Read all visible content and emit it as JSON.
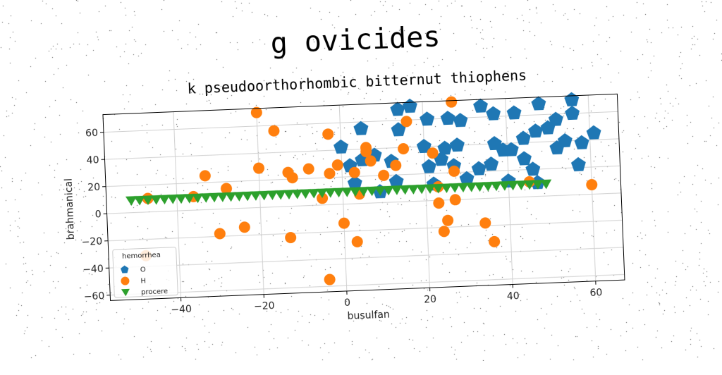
{
  "chart_data": {
    "type": "scatter",
    "title": "g ovicides",
    "subtitle": "k pseudoorthorhombic bitternut thiophens",
    "xlabel": "busulfan",
    "ylabel": "brahmanical",
    "xlim": [
      -57,
      67
    ],
    "ylim": [
      -64,
      73
    ],
    "xticks": [
      -40,
      -20,
      0,
      20,
      40,
      60
    ],
    "yticks": [
      -60,
      -40,
      -20,
      0,
      20,
      40,
      60
    ],
    "grid": true,
    "legend": {
      "title": "hemorrhea",
      "position": "lower-left"
    },
    "series": [
      {
        "name": "O",
        "marker": "pentagon",
        "color": "#1f77b4",
        "points": [
          [
            5,
            55
          ],
          [
            14,
            68
          ],
          [
            17,
            70
          ],
          [
            21,
            60
          ],
          [
            14,
            53
          ],
          [
            26,
            60
          ],
          [
            29,
            58
          ],
          [
            34,
            68
          ],
          [
            37,
            62
          ],
          [
            42,
            62
          ],
          [
            48,
            68
          ],
          [
            52,
            56
          ],
          [
            56,
            70
          ],
          [
            56,
            60
          ],
          [
            61,
            45
          ],
          [
            47,
            48
          ],
          [
            44,
            43
          ],
          [
            54,
            40
          ],
          [
            52,
            35
          ],
          [
            58,
            38
          ],
          [
            57,
            22
          ],
          [
            50,
            50
          ],
          [
            37,
            40
          ],
          [
            36,
            25
          ],
          [
            33,
            22
          ],
          [
            39,
            35
          ],
          [
            44,
            28
          ],
          [
            46,
            20
          ],
          [
            41,
            35
          ],
          [
            28,
            40
          ],
          [
            25,
            38
          ],
          [
            24,
            30
          ],
          [
            27,
            25
          ],
          [
            20,
            40
          ],
          [
            21,
            25
          ],
          [
            12,
            30
          ],
          [
            8,
            35
          ],
          [
            5,
            32
          ],
          [
            2,
            28
          ],
          [
            0,
            42
          ],
          [
            3,
            15
          ],
          [
            9,
            8
          ],
          [
            13,
            15
          ],
          [
            22,
            12
          ],
          [
            30,
            15
          ],
          [
            40,
            12
          ],
          [
            47,
            10
          ]
        ]
      },
      {
        "name": "H",
        "marker": "circle",
        "color": "#ff7f0e",
        "points": [
          [
            -20,
            70
          ],
          [
            -16,
            56
          ],
          [
            -20,
            29
          ],
          [
            -33,
            25
          ],
          [
            -28,
            15
          ],
          [
            -13,
            25
          ],
          [
            -12,
            21
          ],
          [
            -8,
            27
          ],
          [
            -3,
            52
          ],
          [
            -3,
            23
          ],
          [
            -1,
            29
          ],
          [
            3,
            23
          ],
          [
            6,
            41
          ],
          [
            6,
            38
          ],
          [
            7,
            31
          ],
          [
            10,
            20
          ],
          [
            13,
            27
          ],
          [
            15,
            39
          ],
          [
            16,
            59
          ],
          [
            22,
            35
          ],
          [
            23,
            10
          ],
          [
            23,
            -2
          ],
          [
            24,
            -23
          ],
          [
            25,
            -15
          ],
          [
            27,
            72
          ],
          [
            27,
            21
          ],
          [
            27,
            0
          ],
          [
            34,
            -18
          ],
          [
            36,
            -32
          ],
          [
            45,
            11
          ],
          [
            60,
            7
          ],
          [
            -5,
            5
          ],
          [
            -4,
            -55
          ],
          [
            0,
            -14
          ],
          [
            3,
            -28
          ],
          [
            4,
            7
          ],
          [
            -13,
            -23
          ],
          [
            -24,
            -14
          ],
          [
            -30,
            -18
          ],
          [
            -36,
            10
          ],
          [
            -48,
            -32
          ],
          [
            -47,
            10
          ]
        ]
      },
      {
        "name": "procere",
        "marker": "triangle-down",
        "color": "#2ca02c",
        "points": [
          [
            -51,
            9
          ],
          [
            -49,
            9
          ],
          [
            -47,
            9
          ],
          [
            -45,
            9
          ],
          [
            -43,
            9
          ],
          [
            -41,
            9
          ],
          [
            -39,
            9
          ],
          [
            -37,
            9
          ],
          [
            -35,
            9
          ],
          [
            -33,
            9
          ],
          [
            -31,
            9
          ],
          [
            -29,
            9
          ],
          [
            -27,
            9
          ],
          [
            -25,
            9
          ],
          [
            -23,
            9
          ],
          [
            -21,
            9
          ],
          [
            -19,
            9
          ],
          [
            -17,
            9
          ],
          [
            -15,
            9
          ],
          [
            -13,
            9
          ],
          [
            -11,
            9
          ],
          [
            -9,
            9
          ],
          [
            -7,
            9
          ],
          [
            -5,
            9
          ],
          [
            -3,
            9
          ],
          [
            -1,
            9
          ],
          [
            1,
            9
          ],
          [
            3,
            9
          ],
          [
            5,
            9
          ],
          [
            7,
            9
          ],
          [
            9,
            9
          ],
          [
            11,
            9
          ],
          [
            13,
            9
          ],
          [
            15,
            9
          ],
          [
            17,
            9
          ],
          [
            19,
            9
          ],
          [
            21,
            9
          ],
          [
            23,
            9
          ],
          [
            25,
            9
          ],
          [
            27,
            9
          ],
          [
            29,
            9
          ],
          [
            31,
            9
          ],
          [
            33,
            9
          ],
          [
            35,
            9
          ],
          [
            37,
            9
          ],
          [
            39,
            9
          ],
          [
            41,
            9
          ],
          [
            43,
            9
          ],
          [
            45,
            9
          ],
          [
            47,
            9
          ],
          [
            49,
            9
          ]
        ]
      }
    ]
  }
}
